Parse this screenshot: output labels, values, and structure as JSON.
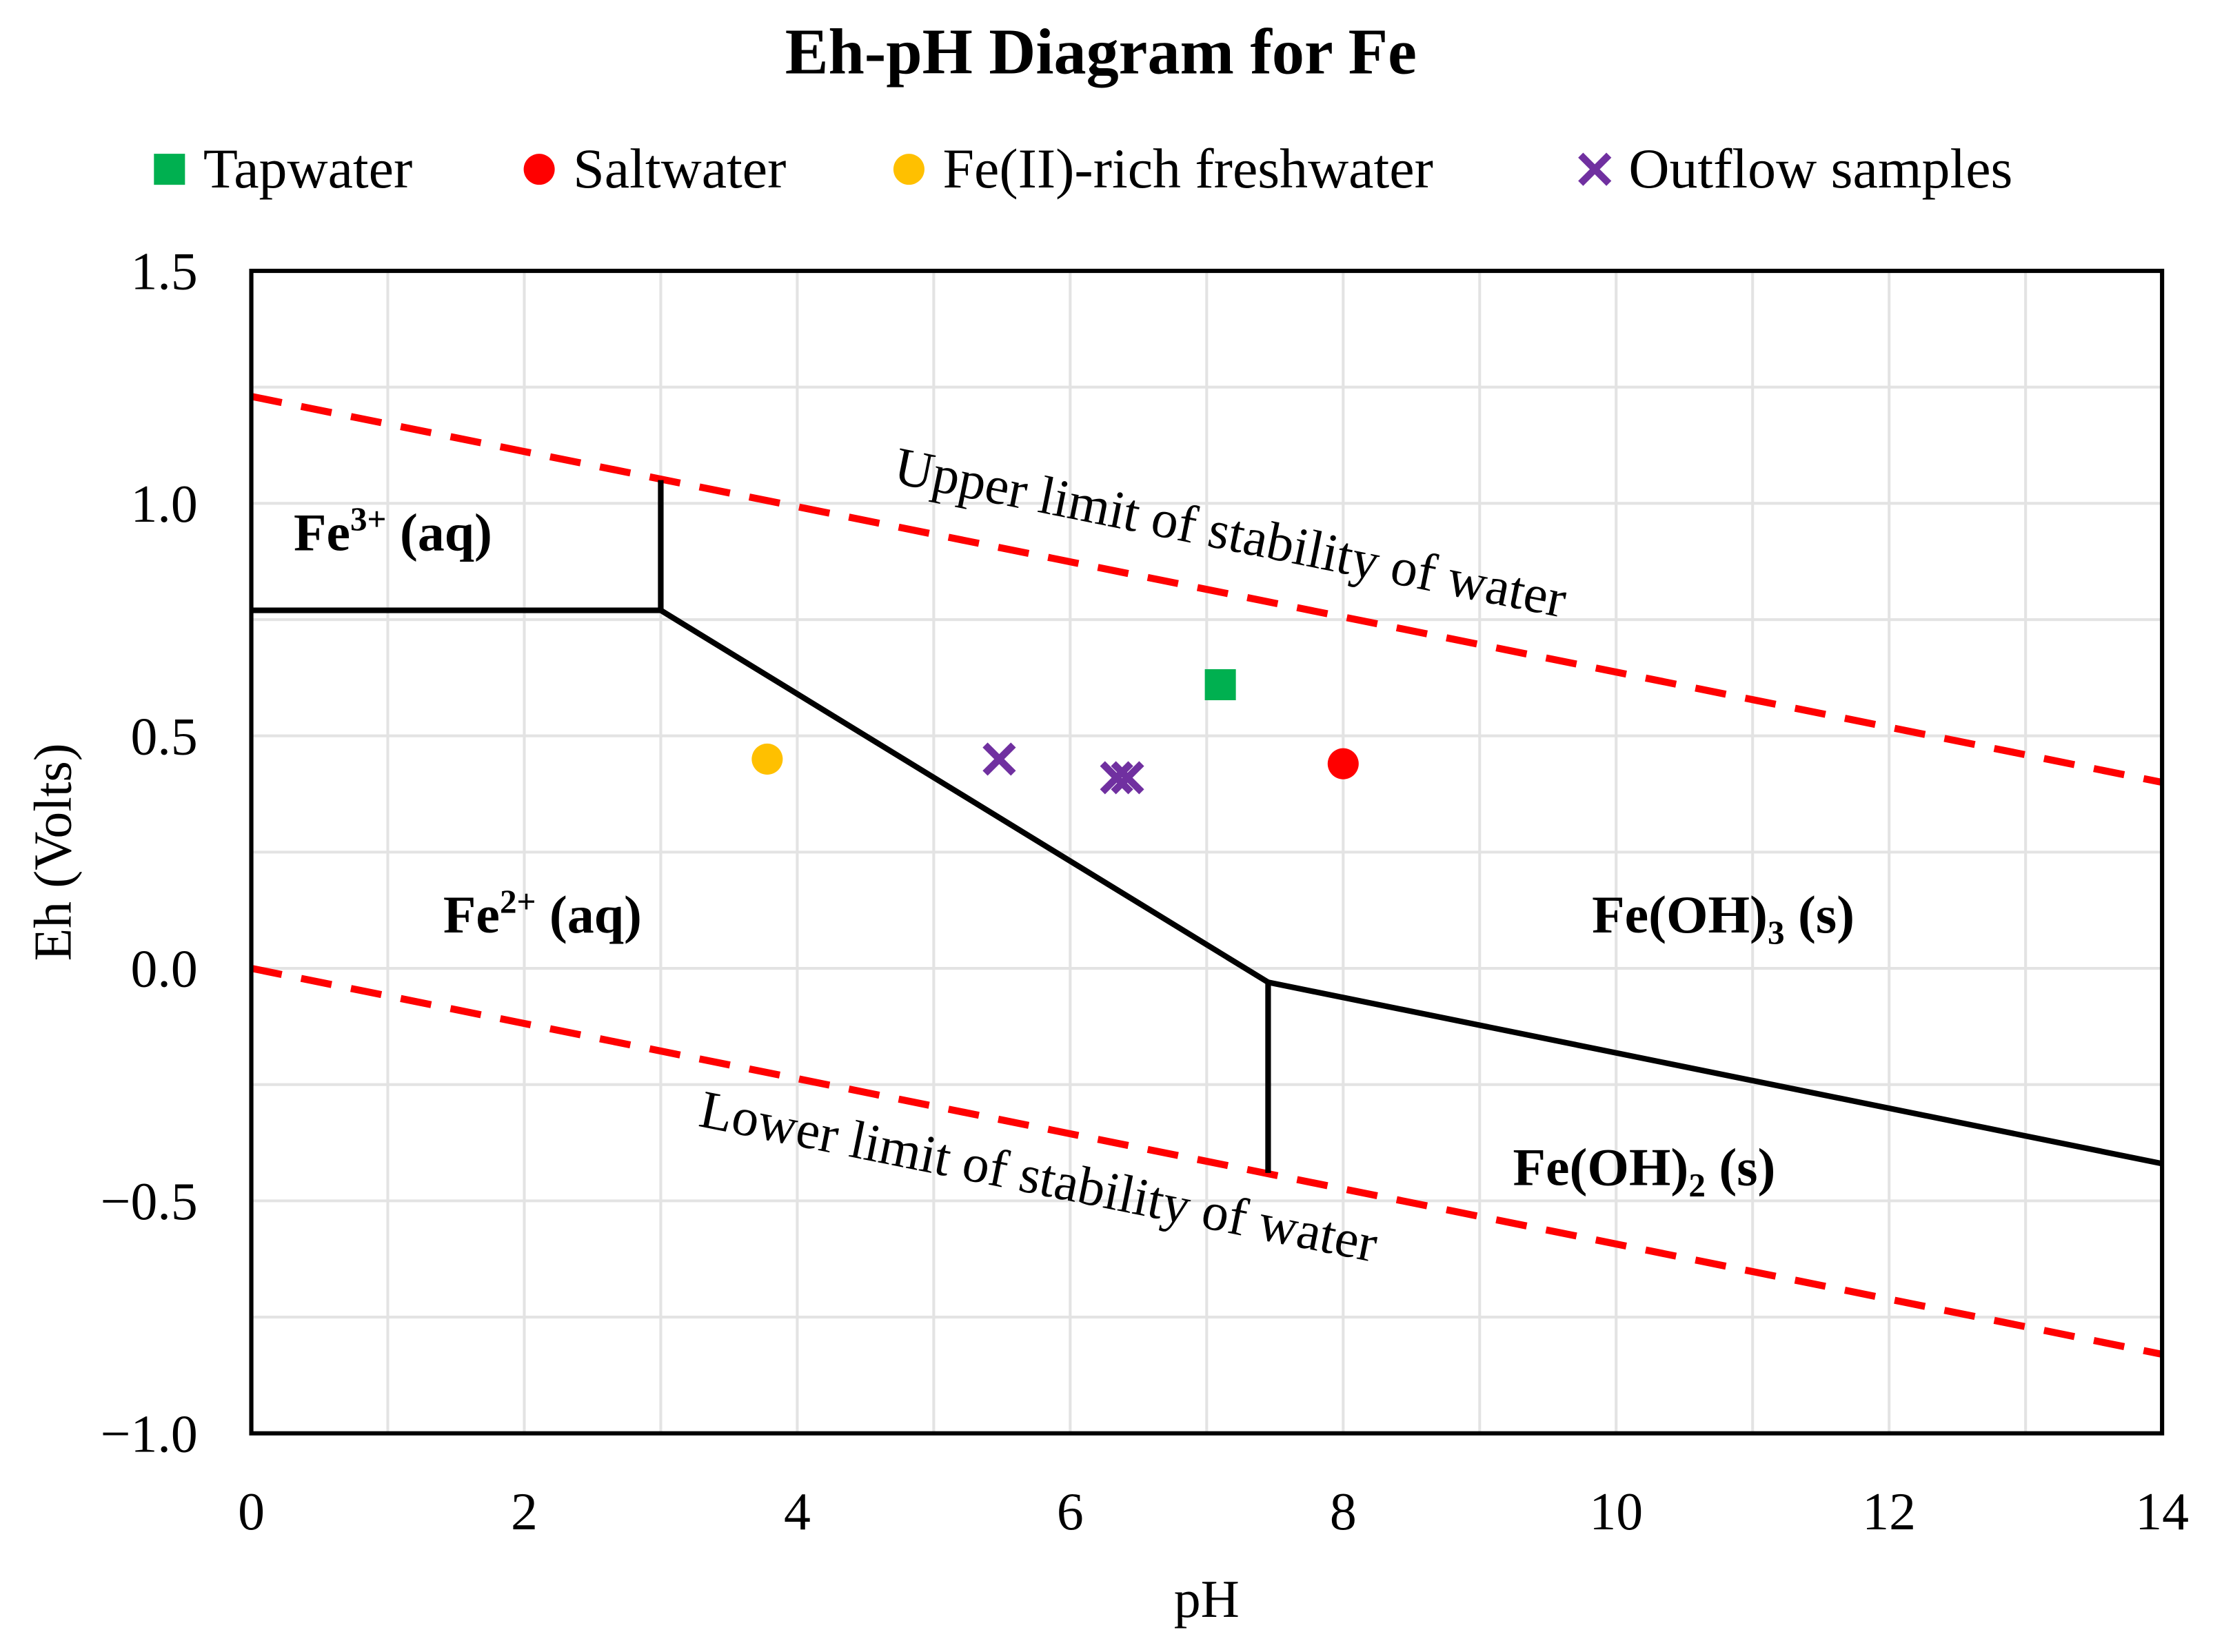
{
  "chart_data": {
    "type": "scatter",
    "title": "Eh-pH Diagram for Fe",
    "xlabel": "pH",
    "ylabel": "Eh (Volts)",
    "xlim": [
      0,
      14
    ],
    "ylim": [
      -1.0,
      1.5
    ],
    "grid": true,
    "legend_position": "top",
    "x_ticks": [
      0,
      2,
      4,
      6,
      8,
      10,
      12,
      14
    ],
    "x_tick_labels": [
      "0",
      "2",
      "4",
      "6",
      "8",
      "10",
      "12",
      "14"
    ],
    "y_ticks": [
      1.5,
      1.0,
      0.5,
      0.0,
      -0.5,
      -1.0
    ],
    "y_tick_labels": [
      "1.5",
      "1.0",
      "0.5",
      "0.0",
      "−0.5",
      "−1.0"
    ],
    "series": [
      {
        "name": "Tapwater",
        "marker": "square",
        "color": "#00B050",
        "points": [
          [
            7.1,
            0.61
          ]
        ]
      },
      {
        "name": "Saltwater",
        "marker": "circle",
        "color": "#FF0000",
        "points": [
          [
            8.0,
            0.44
          ]
        ]
      },
      {
        "name": "Fe(II)-rich freshwater",
        "marker": "circle",
        "color": "#FFC000",
        "points": [
          [
            3.78,
            0.45
          ]
        ]
      },
      {
        "name": "Outflow samples",
        "marker": "x",
        "color": "#7030A0",
        "points": [
          [
            5.48,
            0.45
          ],
          [
            6.34,
            0.41
          ],
          [
            6.42,
            0.41
          ]
        ]
      }
    ],
    "boundaries": [
      {
        "name": "Fe3+/Fe2+",
        "color": "#000000",
        "points": [
          [
            0,
            0.77
          ],
          [
            3,
            0.77
          ]
        ]
      },
      {
        "name": "Fe3+/Fe(OH)3",
        "color": "#000000",
        "points": [
          [
            3,
            0.77
          ],
          [
            3,
            1.05
          ]
        ]
      },
      {
        "name": "Fe2+/Fe(OH)3",
        "color": "#000000",
        "points": [
          [
            3,
            0.77
          ],
          [
            7.45,
            -0.03
          ]
        ]
      },
      {
        "name": "Fe(OH)2/Fe(OH)3",
        "color": "#000000",
        "points": [
          [
            7.45,
            -0.03
          ],
          [
            14,
            -0.42
          ]
        ]
      },
      {
        "name": "Fe2+/Fe(OH)2",
        "color": "#000000",
        "points": [
          [
            7.45,
            -0.03
          ],
          [
            7.45,
            -0.44
          ]
        ]
      }
    ],
    "water_limits": [
      {
        "name": "upper",
        "color": "#FF0000",
        "points": [
          [
            0,
            1.23
          ],
          [
            14,
            0.4
          ]
        ]
      },
      {
        "name": "lower",
        "color": "#FF0000",
        "points": [
          [
            0,
            0.0
          ],
          [
            14,
            -0.83
          ]
        ]
      }
    ],
    "annotations": {
      "upper_limit": "Upper limit of stability of water",
      "lower_limit": "Lower limit of stability of water",
      "fe3": {
        "base": "Fe",
        "sup": "3+",
        "rest": " (aq)"
      },
      "fe2": {
        "base": "Fe",
        "sup": "2+",
        "rest": " (aq)"
      },
      "feoh3": {
        "base": "Fe(OH)",
        "sub": "3",
        "rest": " (s)"
      },
      "feoh2": {
        "base": "Fe(OH)",
        "sub": "2",
        "rest": " (s)"
      }
    }
  }
}
